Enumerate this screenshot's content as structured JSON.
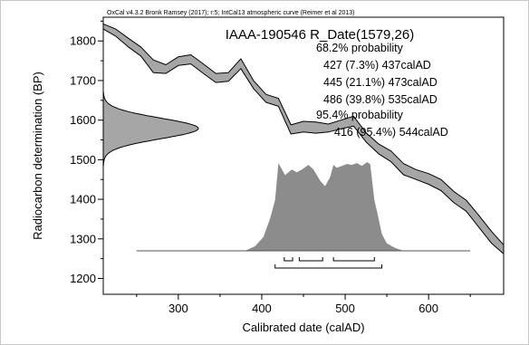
{
  "chart_data": {
    "type": "area",
    "header_note": "OxCal v4.3.2 Bronk Ramsey (2017); r:5; IntCal13 atmospheric curve (Reimer et al 2013)",
    "title": "IAAA-190546 R_Date(1579,26)",
    "xlabel": "Calibrated date (calAD)",
    "ylabel": "Radiocarbon determination (BP)",
    "xlim": [
      210,
      690
    ],
    "ylim": [
      1160,
      1860
    ],
    "x_ticks": [
      300,
      400,
      500,
      600
    ],
    "y_ticks": [
      1200,
      1300,
      1400,
      1500,
      1600,
      1700,
      1800
    ],
    "annotations": [
      "68.2% probability",
      "427 (7.3%) 437calAD",
      "445 (21.1%) 473calAD",
      "486 (39.8%) 535calAD",
      "95.4% probability",
      "416 (95.4%) 544calAD"
    ],
    "radiocarbon_date": {
      "mean_bp": 1579,
      "sigma": 26
    },
    "calibration_curve": {
      "x": [
        210,
        225,
        240,
        255,
        270,
        285,
        300,
        315,
        330,
        345,
        360,
        375,
        390,
        405,
        420,
        435,
        450,
        465,
        480,
        495,
        510,
        525,
        540,
        555,
        570,
        585,
        600,
        615,
        630,
        645,
        660,
        675,
        690
      ],
      "upper": [
        1843,
        1830,
        1807,
        1785,
        1752,
        1740,
        1760,
        1765,
        1742,
        1718,
        1720,
        1755,
        1700,
        1665,
        1655,
        1588,
        1597,
        1595,
        1590,
        1600,
        1610,
        1568,
        1540,
        1522,
        1490,
        1475,
        1465,
        1450,
        1420,
        1398,
        1360,
        1320,
        1285
      ],
      "lower": [
        1830,
        1812,
        1785,
        1762,
        1720,
        1718,
        1738,
        1742,
        1718,
        1695,
        1698,
        1730,
        1680,
        1645,
        1635,
        1565,
        1570,
        1567,
        1570,
        1578,
        1585,
        1545,
        1515,
        1495,
        1462,
        1450,
        1438,
        1422,
        1392,
        1370,
        1330,
        1290,
        1262
      ]
    },
    "calibrated_probability": {
      "x": [
        250,
        380,
        392,
        402,
        410,
        416,
        420,
        428,
        436,
        442,
        448,
        456,
        462,
        470,
        476,
        482,
        486,
        490,
        496,
        502,
        508,
        514,
        520,
        526,
        530,
        535,
        540,
        544,
        550,
        560,
        570,
        650
      ],
      "y": [
        0,
        0,
        0.05,
        0.15,
        0.35,
        0.55,
        0.95,
        0.82,
        0.88,
        0.85,
        0.88,
        0.93,
        0.88,
        0.76,
        0.7,
        0.8,
        0.93,
        0.9,
        0.92,
        0.94,
        0.93,
        0.95,
        0.92,
        0.96,
        0.94,
        0.55,
        0.35,
        0.18,
        0.08,
        0.03,
        0,
        0
      ]
    },
    "ranges_68": [
      [
        427,
        437
      ],
      [
        445,
        473
      ],
      [
        486,
        535
      ]
    ],
    "ranges_95": [
      [
        416,
        544
      ]
    ],
    "colors": {
      "fill": "#a6a6a6",
      "dist_fill": "#8c8c8c",
      "stroke": "#000000"
    }
  }
}
